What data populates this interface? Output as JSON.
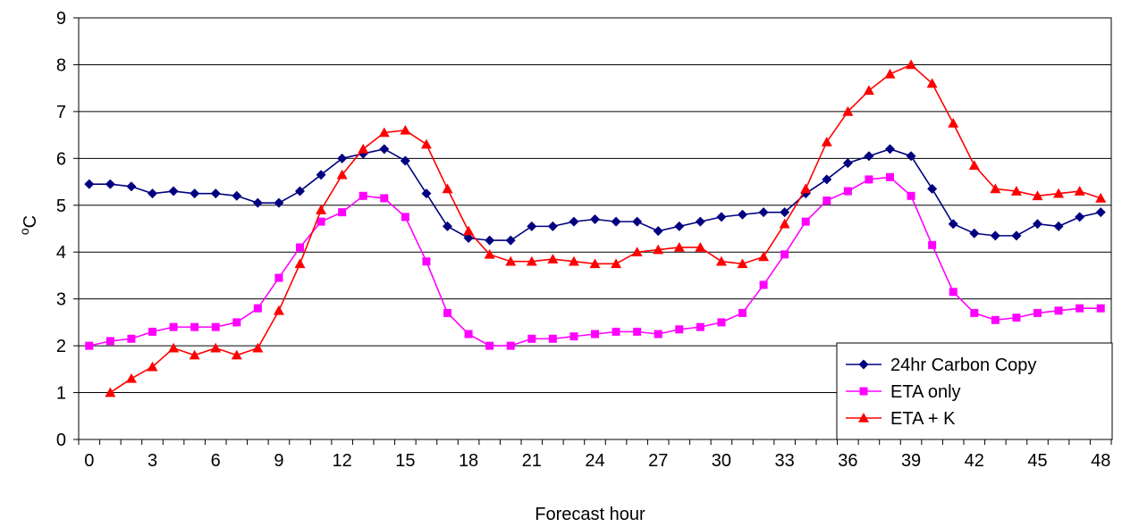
{
  "chart_data": {
    "type": "line",
    "title": "",
    "xlabel": "Forecast hour",
    "ylabel_base": "C",
    "ylabel_sup": "o",
    "xlim": [
      0,
      48
    ],
    "ylim": [
      0,
      9
    ],
    "x_ticks": [
      0,
      3,
      6,
      9,
      12,
      15,
      18,
      21,
      24,
      27,
      30,
      33,
      36,
      39,
      42,
      45,
      48
    ],
    "y_ticks": [
      0,
      1,
      2,
      3,
      4,
      5,
      6,
      7,
      8,
      9
    ],
    "grid": "horizontal",
    "legend_position": "bottom-right",
    "series": [
      {
        "name": "24hr Carbon Copy",
        "color": "#000080",
        "marker": "diamond",
        "x": [
          0,
          1,
          2,
          3,
          4,
          5,
          6,
          7,
          8,
          9,
          10,
          11,
          12,
          13,
          14,
          15,
          16,
          17,
          18,
          19,
          20,
          21,
          22,
          23,
          24,
          25,
          26,
          27,
          28,
          29,
          30,
          31,
          32,
          33,
          34,
          35,
          36,
          37,
          38,
          39,
          40,
          41,
          42,
          43,
          44,
          45,
          46,
          47,
          48
        ],
        "values": [
          5.45,
          5.45,
          5.4,
          5.25,
          5.3,
          5.25,
          5.25,
          5.2,
          5.05,
          5.05,
          5.3,
          5.65,
          6.0,
          6.1,
          6.2,
          5.95,
          5.25,
          4.55,
          4.3,
          4.25,
          4.25,
          4.55,
          4.55,
          4.65,
          4.7,
          4.65,
          4.65,
          4.45,
          4.55,
          4.65,
          4.75,
          4.8,
          4.85,
          4.85,
          5.25,
          5.55,
          5.9,
          6.05,
          6.2,
          6.05,
          5.35,
          4.6,
          4.4,
          4.35,
          4.35,
          4.6,
          4.55,
          4.75,
          4.85
        ]
      },
      {
        "name": "ETA only",
        "color": "#FF00FF",
        "marker": "square",
        "x": [
          0,
          1,
          2,
          3,
          4,
          5,
          6,
          7,
          8,
          9,
          10,
          11,
          12,
          13,
          14,
          15,
          16,
          17,
          18,
          19,
          20,
          21,
          22,
          23,
          24,
          25,
          26,
          27,
          28,
          29,
          30,
          31,
          32,
          33,
          34,
          35,
          36,
          37,
          38,
          39,
          40,
          41,
          42,
          43,
          44,
          45,
          46,
          47,
          48
        ],
        "values": [
          2.0,
          2.1,
          2.15,
          2.3,
          2.4,
          2.4,
          2.4,
          2.5,
          2.8,
          3.45,
          4.1,
          4.65,
          4.85,
          5.2,
          5.15,
          4.75,
          3.8,
          2.7,
          2.25,
          2.0,
          2.0,
          2.15,
          2.15,
          2.2,
          2.25,
          2.3,
          2.3,
          2.25,
          2.35,
          2.4,
          2.5,
          2.7,
          3.3,
          3.95,
          4.65,
          5.1,
          5.3,
          5.55,
          5.6,
          5.2,
          4.15,
          3.15,
          2.7,
          2.55,
          2.6,
          2.7,
          2.75,
          2.8,
          2.8
        ]
      },
      {
        "name": "ETA + K",
        "color": "#FF0000",
        "marker": "triangle",
        "x": [
          1,
          2,
          3,
          4,
          5,
          6,
          7,
          8,
          9,
          10,
          11,
          12,
          13,
          14,
          15,
          16,
          17,
          18,
          19,
          20,
          21,
          22,
          23,
          24,
          25,
          26,
          27,
          28,
          29,
          30,
          31,
          32,
          33,
          34,
          35,
          36,
          37,
          38,
          39,
          40,
          41,
          42,
          43,
          44,
          45,
          46,
          47,
          48
        ],
        "values": [
          1.0,
          1.3,
          1.55,
          1.95,
          1.8,
          1.95,
          1.8,
          1.95,
          2.75,
          3.75,
          4.9,
          5.65,
          6.2,
          6.55,
          6.6,
          6.3,
          5.35,
          4.45,
          3.95,
          3.8,
          3.8,
          3.85,
          3.8,
          3.75,
          3.75,
          4.0,
          4.05,
          4.1,
          4.1,
          3.8,
          3.75,
          3.9,
          4.6,
          5.35,
          6.35,
          7.0,
          7.45,
          7.8,
          8.0,
          7.6,
          6.75,
          5.85,
          5.35,
          5.3,
          5.2,
          5.25,
          5.3,
          5.15
        ]
      }
    ]
  }
}
